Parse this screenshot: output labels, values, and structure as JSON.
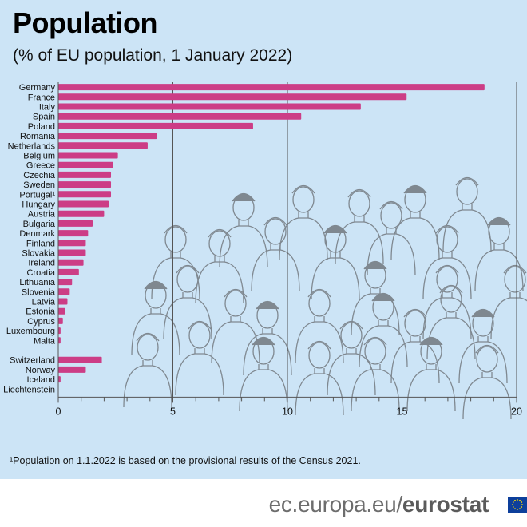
{
  "header": {
    "title": "Population",
    "subtitle": "(% of EU population, 1 January 2022)"
  },
  "footnote": "¹Population on 1.1.2022 is based on the provisional results of the Census 2021.",
  "brand": {
    "prefix": "ec.europa.eu/",
    "name": "eurostat",
    "flag_icon": "eu-flag-icon"
  },
  "colors": {
    "bar": "#cc3d86",
    "background": "#cce4f6",
    "gridline": "#555555",
    "illustration": "#7f8890"
  },
  "chart_data": {
    "type": "bar",
    "orientation": "horizontal",
    "title": "Population",
    "subtitle": "(% of EU population, 1 January 2022)",
    "xlabel": "",
    "ylabel": "",
    "xlim": [
      0,
      20
    ],
    "xticks": [
      "0",
      "5",
      "10",
      "15",
      "20"
    ],
    "grid": true,
    "legend": "none",
    "categories": [
      "Germany",
      "France",
      "Italy",
      "Spain",
      "Poland",
      "Romania",
      "Netherlands",
      "Belgium",
      "Greece",
      "Czechia",
      "Sweden",
      "Portugal¹",
      "Hungary",
      "Austria",
      "Bulgaria",
      "Denmark",
      "Finland",
      "Slovakia",
      "Ireland",
      "Croatia",
      "Lithuania",
      "Slovenia",
      "Latvia",
      "Estonia",
      "Cyprus",
      "Luxembourg",
      "Malta",
      "",
      "Switzerland",
      "Norway",
      "Iceland",
      "Liechtenstein"
    ],
    "values": [
      18.6,
      15.2,
      13.2,
      10.6,
      8.5,
      4.3,
      3.9,
      2.6,
      2.4,
      2.3,
      2.3,
      2.3,
      2.2,
      2.0,
      1.5,
      1.3,
      1.2,
      1.2,
      1.1,
      0.9,
      0.6,
      0.5,
      0.4,
      0.3,
      0.2,
      0.1,
      0.1,
      null,
      1.9,
      1.2,
      0.1,
      0.0
    ]
  }
}
